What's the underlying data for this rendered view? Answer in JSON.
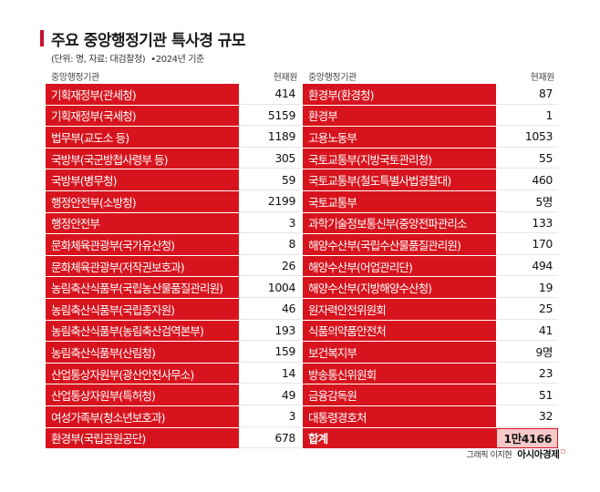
{
  "title": "주요 중앙행정기관 특사경 규모",
  "subtitle": {
    "unit": "(단위: 명, 자료: 대검찰청)",
    "note": "•2024년 기준"
  },
  "columns": {
    "agency": "중앙행정기관",
    "current": "현재원"
  },
  "left_rows": [
    {
      "name": "기획재정부(관세청)",
      "value": "414"
    },
    {
      "name": "기획재정부(국세청)",
      "value": "5159"
    },
    {
      "name": "법무부(교도소 등)",
      "value": "1189"
    },
    {
      "name": "국방부(국군방첩사령부 등)",
      "value": "305"
    },
    {
      "name": "국방부(병무청)",
      "value": "59"
    },
    {
      "name": "행정안전부(소방청)",
      "value": "2199"
    },
    {
      "name": "행정안전부",
      "value": "3"
    },
    {
      "name": "문화체육관광부(국가유산청)",
      "value": "8"
    },
    {
      "name": "문화체육관광부(저작권보호과)",
      "value": "26"
    },
    {
      "name": "농림축산식품부(국립농산물품질관리원)",
      "value": "1004"
    },
    {
      "name": "농림축산식품부(국립종자원)",
      "value": "46"
    },
    {
      "name": "농림축산식품부(농림축산검역본부)",
      "value": "193"
    },
    {
      "name": "농림축산식품부(산림청)",
      "value": "159"
    },
    {
      "name": "산업통상자원부(광산안전사무소)",
      "value": "14"
    },
    {
      "name": "산업통상자원부(특허청)",
      "value": "49"
    },
    {
      "name": "여성가족부(청소년보호과)",
      "value": "3"
    },
    {
      "name": "환경부(국립공원공단)",
      "value": "678"
    }
  ],
  "right_rows": [
    {
      "name": "환경부(환경청)",
      "value": "87"
    },
    {
      "name": "환경부",
      "value": "1"
    },
    {
      "name": "고용노동부",
      "value": "1053"
    },
    {
      "name": "국토교통부(지방국토관리청)",
      "value": "55"
    },
    {
      "name": "국토교통부(철도특별사법경찰대)",
      "value": "460"
    },
    {
      "name": "국토교통부",
      "value": "5명"
    },
    {
      "name": "과학기술정보통신부(중앙전파관리소",
      "value": "133"
    },
    {
      "name": "해양수산부(국립수산물품질관리원)",
      "value": "170"
    },
    {
      "name": "해양수산부(어업관리단)",
      "value": "494"
    },
    {
      "name": "해양수산부(지방해양수산청)",
      "value": "19"
    },
    {
      "name": "원자력안전위원회",
      "value": "25"
    },
    {
      "name": "식품의약품안전처",
      "value": "41"
    },
    {
      "name": "보건복지부",
      "value": "9명"
    },
    {
      "name": "방송통신위원회",
      "value": "23"
    },
    {
      "name": "금융감독원",
      "value": "51"
    },
    {
      "name": "대통령경호처",
      "value": "32"
    }
  ],
  "total": {
    "name": "합계",
    "value": "1만4166"
  },
  "credit": {
    "text": "그래픽 이지현",
    "logo": "아시아경제",
    "logo_mark": "◻"
  },
  "colors": {
    "accent": "#d7141e",
    "total_bg": "#f6c9c9"
  }
}
